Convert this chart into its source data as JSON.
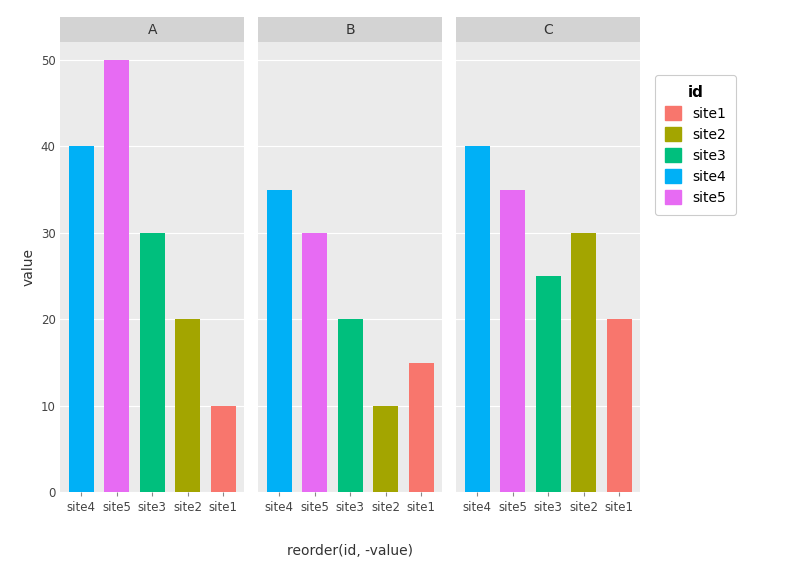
{
  "panels": [
    "A",
    "B",
    "C"
  ],
  "categories": [
    "site4",
    "site5",
    "site3",
    "site2",
    "site1"
  ],
  "values": {
    "A": {
      "site4": 40,
      "site5": 50,
      "site3": 30,
      "site2": 20,
      "site1": 10
    },
    "B": {
      "site4": 35,
      "site5": 30,
      "site3": 20,
      "site2": 10,
      "site1": 15
    },
    "C": {
      "site4": 40,
      "site5": 35,
      "site3": 25,
      "site2": 30,
      "site1": 20
    }
  },
  "colors": {
    "site1": "#F8766D",
    "site2": "#A3A500",
    "site3": "#00BF7D",
    "site4": "#00B0F6",
    "site5": "#E76BF3"
  },
  "legend_title": "id",
  "legend_items": [
    "site1",
    "site2",
    "site3",
    "site4",
    "site5"
  ],
  "xlabel": "reorder(id, -value)",
  "ylabel": "value",
  "ylim": [
    0,
    52
  ],
  "yticks": [
    0,
    10,
    20,
    30,
    40,
    50
  ],
  "plot_bg": "#EBEBEB",
  "strip_bg": "#D3D3D3",
  "fig_bg": "#FFFFFF",
  "grid_color": "#FFFFFF",
  "title_fontsize": 10,
  "axis_fontsize": 10,
  "tick_fontsize": 8.5,
  "legend_fontsize": 10,
  "bar_width": 0.7
}
